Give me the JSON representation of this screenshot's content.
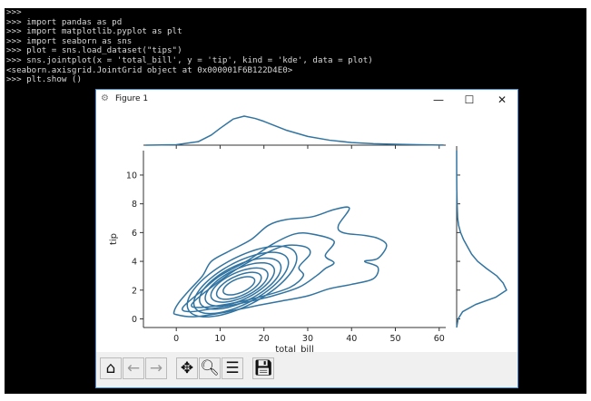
{
  "terminal": {
    "lines": [
      ">>>",
      ">>> import pandas as pd",
      ">>> import matplotlib.pyplot as plt",
      ">>> import seaborn as sns",
      ">>> plot = sns.load_dataset(\"tips\")",
      ">>> sns.jointplot(x = 'total_bill', y = 'tip', kind = 'kde', data = plot)",
      "<seaborn.axisgrid.JointGrid object at 0x000001F6B122D4E0>",
      ">>> plt.show ()"
    ]
  },
  "window": {
    "title": "Figure 1",
    "icon": "matplotlib-figure-icon",
    "minimize": "—",
    "maximize": "☐",
    "close": "✕"
  },
  "toolbar": {
    "buttons": [
      {
        "name": "home",
        "glyph": "⌂",
        "enabled": true
      },
      {
        "name": "back",
        "glyph": "←",
        "enabled": false
      },
      {
        "name": "forward",
        "glyph": "→",
        "enabled": false
      },
      {
        "name": "pan",
        "glyph": "✥",
        "enabled": true
      },
      {
        "name": "zoom",
        "glyph": "🔍︎",
        "enabled": true
      },
      {
        "name": "configure-subplots",
        "glyph": "☰",
        "enabled": true
      },
      {
        "name": "save",
        "glyph": "💾︎",
        "enabled": true
      }
    ]
  },
  "chart_data": {
    "type": "kde-contour-jointplot",
    "xlabel": "total_bill",
    "ylabel": "tip",
    "xlim": [
      -7.5,
      61.5
    ],
    "ylim": [
      -0.6,
      11.7
    ],
    "xticks": [
      0,
      10,
      20,
      30,
      40,
      50,
      60
    ],
    "yticks": [
      0,
      2,
      4,
      6,
      8,
      10
    ],
    "color": "#3274a1",
    "grid": false,
    "contours_outer": [
      [
        [
          -0.5,
          0.5
        ],
        [
          0.5,
          1.1
        ],
        [
          3,
          2
        ],
        [
          6,
          3
        ],
        [
          8,
          4
        ],
        [
          12,
          4.7
        ],
        [
          17,
          5.5
        ],
        [
          21,
          6.5
        ],
        [
          25,
          6.9
        ],
        [
          31,
          7.1
        ],
        [
          36,
          7.6
        ],
        [
          39.5,
          7.7
        ],
        [
          37,
          6.5
        ],
        [
          38,
          6
        ],
        [
          43,
          5.8
        ],
        [
          46,
          5.6
        ],
        [
          48,
          5.1
        ],
        [
          46,
          4.2
        ],
        [
          43,
          4
        ],
        [
          46,
          3.6
        ],
        [
          45,
          2.8
        ],
        [
          40,
          2.4
        ],
        [
          35,
          2.1
        ],
        [
          30,
          1.6
        ],
        [
          25,
          1.3
        ],
        [
          18,
          0.9
        ],
        [
          10,
          0.4
        ],
        [
          4,
          0.15
        ],
        [
          0,
          0.3
        ]
      ],
      [
        [
          1.5,
          0.8
        ],
        [
          6,
          2
        ],
        [
          10,
          3
        ],
        [
          16,
          4
        ],
        [
          22,
          5.2
        ],
        [
          27,
          5.9
        ],
        [
          31,
          5.9
        ],
        [
          36,
          5.4
        ],
        [
          34,
          4.4
        ],
        [
          36,
          3.9
        ],
        [
          34,
          3.5
        ],
        [
          32,
          3
        ],
        [
          28,
          2.2
        ],
        [
          22,
          1.6
        ],
        [
          15,
          1.1
        ],
        [
          8,
          0.7
        ],
        [
          3,
          0.5
        ]
      ],
      [
        [
          3.5,
          1
        ],
        [
          8,
          2.2
        ],
        [
          14,
          3.5
        ],
        [
          20,
          4.5
        ],
        [
          25,
          5.1
        ],
        [
          29.5,
          5.0
        ],
        [
          30.5,
          4.5
        ],
        [
          28,
          3.6
        ],
        [
          29,
          3
        ],
        [
          26,
          2.2
        ],
        [
          20,
          1.6
        ],
        [
          13,
          1.1
        ],
        [
          6,
          0.8
        ]
      ]
    ],
    "contours_inner_ellipses": [
      {
        "cx": 15,
        "cy": 2.6,
        "rx": 12.5,
        "ry": 1.85,
        "tilt": 0.13
      },
      {
        "cx": 14.8,
        "cy": 2.5,
        "rx": 10.8,
        "ry": 1.6,
        "tilt": 0.13
      },
      {
        "cx": 14.6,
        "cy": 2.45,
        "rx": 9.3,
        "ry": 1.38,
        "tilt": 0.12
      },
      {
        "cx": 14.5,
        "cy": 2.4,
        "rx": 7.9,
        "ry": 1.16,
        "tilt": 0.12
      },
      {
        "cx": 14.4,
        "cy": 2.35,
        "rx": 6.5,
        "ry": 0.95,
        "tilt": 0.11
      },
      {
        "cx": 14.3,
        "cy": 2.3,
        "rx": 5.1,
        "ry": 0.75,
        "tilt": 0.11
      },
      {
        "cx": 14.3,
        "cy": 2.3,
        "rx": 3.6,
        "ry": 0.52,
        "tilt": 0.1
      }
    ],
    "marginal_x": {
      "x": [
        -7,
        -5,
        0,
        5,
        8,
        10,
        13,
        15.5,
        18,
        20,
        25,
        30,
        35,
        40,
        45,
        50,
        55,
        60,
        61
      ],
      "density": [
        0,
        0.002,
        0.015,
        0.12,
        0.35,
        0.58,
        0.9,
        1.0,
        0.92,
        0.82,
        0.52,
        0.3,
        0.17,
        0.09,
        0.05,
        0.03,
        0.015,
        0.005,
        0.002
      ]
    },
    "marginal_y": {
      "y": [
        -0.6,
        0,
        0.5,
        1,
        1.5,
        2,
        2.5,
        3,
        3.5,
        4,
        4.5,
        5,
        5.5,
        6,
        6.5,
        7,
        8,
        9,
        10,
        11.7
      ],
      "density": [
        0,
        0.03,
        0.12,
        0.38,
        0.78,
        1.0,
        0.93,
        0.8,
        0.6,
        0.42,
        0.3,
        0.22,
        0.14,
        0.08,
        0.04,
        0.02,
        0.01,
        0.003,
        0.001,
        0
      ]
    }
  }
}
